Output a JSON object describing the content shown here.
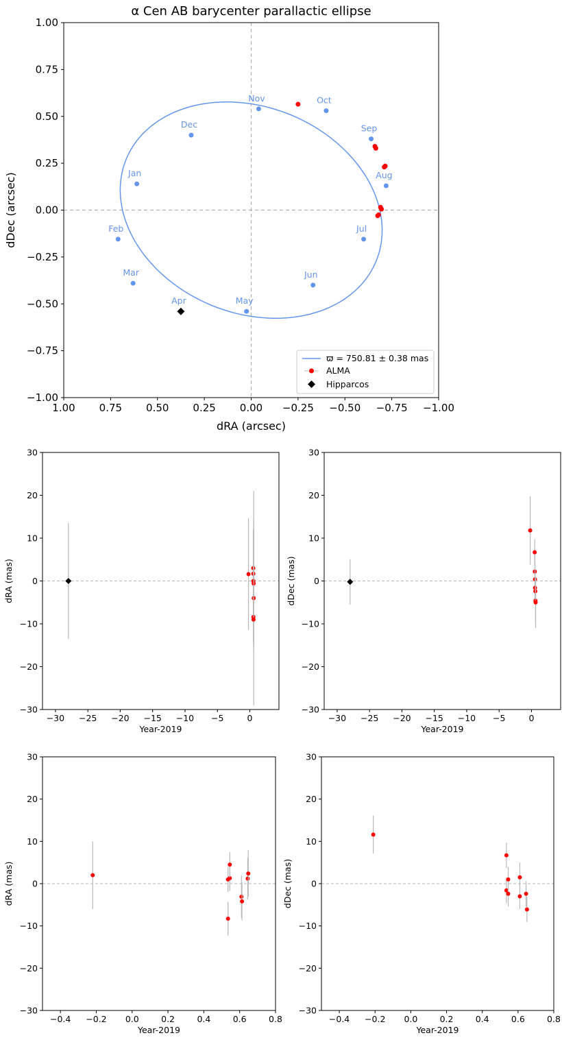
{
  "chart_data": [
    {
      "type": "line",
      "title": "α Cen AB barycenter parallactic ellipse",
      "xlabel": "dRA (arcsec)",
      "ylabel": "dDec (arcsec)",
      "xlim": [
        1.0,
        -1.0
      ],
      "ylim": [
        -1.0,
        1.0
      ],
      "xticks": [
        "1.00",
        "0.75",
        "0.50",
        "0.25",
        "0.00",
        "−0.25",
        "−0.50",
        "−0.75",
        "−1.00"
      ],
      "yticks": [
        "1.00",
        "0.75",
        "0.50",
        "0.25",
        "0.00",
        "−0.25",
        "−0.50",
        "−0.75",
        "−1.00"
      ],
      "reference_lines": {
        "x": 0,
        "y": 0
      },
      "ellipse_color": "#6495ed",
      "ellipse": {
        "center": [
          0.0,
          0.0
        ],
        "a_x": 0.72,
        "b_y": 0.55,
        "tilt_deg": 22
      },
      "months": [
        {
          "label": "Nov",
          "x": -0.04,
          "y": 0.54
        },
        {
          "label": "Oct",
          "x": -0.4,
          "y": 0.53
        },
        {
          "label": "Sep",
          "x": -0.64,
          "y": 0.38
        },
        {
          "label": "Aug",
          "x": -0.72,
          "y": 0.13
        },
        {
          "label": "Jul",
          "x": -0.6,
          "y": -0.155
        },
        {
          "label": "Jun",
          "x": -0.33,
          "y": -0.4
        },
        {
          "label": "May",
          "x": 0.025,
          "y": -0.54
        },
        {
          "label": "Apr",
          "x": 0.375,
          "y": -0.54
        },
        {
          "label": "Mar",
          "x": 0.63,
          "y": -0.39
        },
        {
          "label": "Feb",
          "x": 0.71,
          "y": -0.155
        },
        {
          "label": "Jan",
          "x": 0.61,
          "y": 0.14
        },
        {
          "label": "Dec",
          "x": 0.32,
          "y": 0.4
        }
      ],
      "series": [
        {
          "name": "ALMA",
          "color": "#ff0000",
          "marker": "circle",
          "points": [
            [
              -0.25,
              0.565
            ],
            [
              -0.66,
              0.34
            ],
            [
              -0.665,
              0.33
            ],
            [
              -0.71,
              0.23
            ],
            [
              -0.715,
              0.235
            ],
            [
              -0.69,
              0.015
            ],
            [
              -0.695,
              0.005
            ],
            [
              -0.68,
              -0.025
            ],
            [
              -0.675,
              -0.03
            ]
          ]
        },
        {
          "name": "Hipparcos",
          "color": "#000000",
          "marker": "diamond",
          "points": [
            [
              0.375,
              -0.54
            ]
          ]
        }
      ],
      "legend": {
        "position": "lower-right",
        "ellipse_label": "ϖ = 750.81 ± 0.38 mas",
        "alma_label": "ALMA",
        "hipparcos_label": "Hipparcos"
      }
    },
    {
      "type": "scatter",
      "xlabel": "Year-2019",
      "ylabel": "dRA (mas)",
      "xlim": [
        -32,
        4.5
      ],
      "ylim": [
        -30,
        30
      ],
      "xticks": [
        -30,
        -25,
        -20,
        -15,
        -10,
        -5,
        0
      ],
      "yticks": [
        -30,
        -20,
        -10,
        0,
        10,
        20,
        30
      ],
      "hipparcos": [
        {
          "x": -28.0,
          "y": 0.0,
          "err": 13.5
        }
      ],
      "alma": [
        {
          "x": -0.2,
          "y": 1.6,
          "err": 13.0
        },
        {
          "x": 0.54,
          "y": 3.0,
          "err": 9.0
        },
        {
          "x": 0.55,
          "y": 1.7,
          "err": 10.0
        },
        {
          "x": 0.55,
          "y": 0.0,
          "err": 6.0
        },
        {
          "x": 0.6,
          "y": -0.6,
          "err": 15.0
        },
        {
          "x": 0.61,
          "y": -4.0,
          "err": 25.0
        },
        {
          "x": 0.56,
          "y": -8.4,
          "err": 6.0
        },
        {
          "x": 0.58,
          "y": -9.0,
          "err": 6.0
        }
      ]
    },
    {
      "type": "scatter",
      "xlabel": "Year-2019",
      "ylabel": "dDec (mas)",
      "xlim": [
        -32,
        4.5
      ],
      "ylim": [
        -30,
        30
      ],
      "xticks": [
        -30,
        -25,
        -20,
        -15,
        -10,
        -5,
        0
      ],
      "yticks": [
        -30,
        -20,
        -10,
        0,
        10,
        20,
        30
      ],
      "hipparcos": [
        {
          "x": -28.0,
          "y": -0.2,
          "err": 5.3
        }
      ],
      "alma": [
        {
          "x": -0.2,
          "y": 11.8,
          "err": 8.0
        },
        {
          "x": 0.5,
          "y": 6.7,
          "err": 3.0
        },
        {
          "x": 0.52,
          "y": 2.2,
          "err": 4.0
        },
        {
          "x": 0.54,
          "y": 0.4,
          "err": 4.0
        },
        {
          "x": 0.55,
          "y": -1.6,
          "err": 3.5
        },
        {
          "x": 0.6,
          "y": -2.4,
          "err": 3.0
        },
        {
          "x": 0.62,
          "y": -4.6,
          "err": 5.0
        },
        {
          "x": 0.64,
          "y": -5.0,
          "err": 6.0
        }
      ]
    },
    {
      "type": "scatter",
      "xlabel": "Year-2019",
      "ylabel": "dRA (mas)",
      "xlim": [
        -0.5,
        0.8
      ],
      "ylim": [
        -30,
        30
      ],
      "xticks": [
        -0.4,
        -0.2,
        0.0,
        0.2,
        0.4,
        0.6,
        0.8
      ],
      "yticks": [
        -30,
        -20,
        -10,
        0,
        10,
        20,
        30
      ],
      "alma": [
        {
          "x": -0.22,
          "y": 2.0,
          "err": 8.0
        },
        {
          "x": 0.535,
          "y": 1.0,
          "err": 3.0
        },
        {
          "x": 0.545,
          "y": 1.3,
          "err": 3.0
        },
        {
          "x": 0.545,
          "y": 4.5,
          "err": 3.0
        },
        {
          "x": 0.535,
          "y": -8.3,
          "err": 4.0
        },
        {
          "x": 0.61,
          "y": -3.1,
          "err": 5.0
        },
        {
          "x": 0.613,
          "y": -4.2,
          "err": 4.5
        },
        {
          "x": 0.645,
          "y": 1.2,
          "err": 5.0
        },
        {
          "x": 0.648,
          "y": 2.4,
          "err": 5.5
        }
      ]
    },
    {
      "type": "scatter",
      "xlabel": "Year-2019",
      "ylabel": "dDec (mas)",
      "xlim": [
        -0.5,
        0.8
      ],
      "ylim": [
        -30,
        30
      ],
      "xticks": [
        -0.4,
        -0.2,
        0.0,
        0.2,
        0.4,
        0.6,
        0.8
      ],
      "yticks": [
        -30,
        -20,
        -10,
        0,
        10,
        20,
        30
      ],
      "alma": [
        {
          "x": -0.21,
          "y": 11.6,
          "err": 4.5
        },
        {
          "x": 0.535,
          "y": 6.7,
          "err": 3.0
        },
        {
          "x": 0.535,
          "y": -1.6,
          "err": 3.0
        },
        {
          "x": 0.545,
          "y": 1.0,
          "err": 3.0
        },
        {
          "x": 0.545,
          "y": -2.4,
          "err": 3.0
        },
        {
          "x": 0.61,
          "y": 1.5,
          "err": 3.5
        },
        {
          "x": 0.61,
          "y": -3.0,
          "err": 3.0
        },
        {
          "x": 0.645,
          "y": -2.4,
          "err": 3.0
        },
        {
          "x": 0.65,
          "y": -6.1,
          "err": 3.0
        }
      ]
    }
  ]
}
